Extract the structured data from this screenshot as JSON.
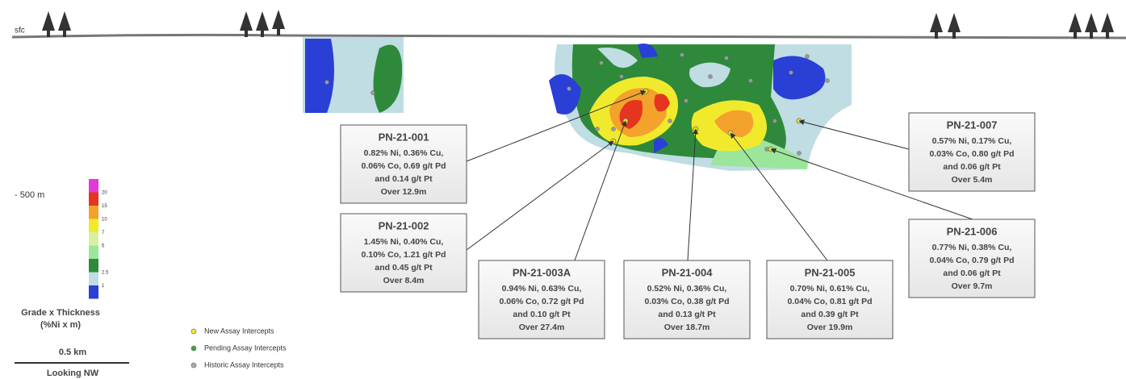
{
  "surface_label": "sfc",
  "depth_label": "- 500 m",
  "color_scale": {
    "labels": [
      "20",
      "15",
      "10",
      "7",
      "5",
      "2.5",
      "1"
    ],
    "title": "Grade x Thickness",
    "units": "(%Ni x m)"
  },
  "scale_bar": "0.5 km",
  "view": "Looking NW",
  "legend": [
    "New Assay Intercepts",
    "Pending Assay Intercepts",
    "Historic Assay Intercepts"
  ],
  "boxes": [
    {
      "title": "PN-21-001",
      "lines": [
        "0.82% Ni, 0.36% Cu,",
        "0.06% Co, 0.69 g/t Pd",
        "and 0.14 g/t Pt",
        "Over 12.9m"
      ]
    },
    {
      "title": "PN-21-002",
      "lines": [
        "1.45% Ni, 0.40% Cu,",
        "0.10% Co, 1.21 g/t Pd",
        "and 0.45 g/t Pt",
        "Over 8.4m"
      ]
    },
    {
      "title": "PN-21-003A",
      "lines": [
        "0.94% Ni, 0.63% Cu,",
        "0.06% Co, 0.72 g/t Pd",
        "and 0.10 g/t Pt",
        "Over 27.4m"
      ]
    },
    {
      "title": "PN-21-004",
      "lines": [
        "0.52% Ni, 0.36% Cu,",
        "0.03% Co, 0.38 g/t Pd",
        "and 0.13 g/t Pt",
        "Over 18.7m"
      ]
    },
    {
      "title": "PN-21-005",
      "lines": [
        "0.70% Ni, 0.61% Cu,",
        "0.04% Co, 0.81 g/t Pd",
        "and 0.39 g/t Pt",
        "Over 19.9m"
      ]
    },
    {
      "title": "PN-21-006",
      "lines": [
        "0.77% Ni, 0.38% Cu,",
        "0.04% Co, 0.79 g/t Pd",
        "and 0.06 g/t Pt",
        "Over 9.7m"
      ]
    },
    {
      "title": "PN-21-007",
      "lines": [
        "0.57% Ni, 0.17% Cu,",
        "0.03% Co, 0.80 g/t Pd",
        "and 0.06 g/t Pt",
        "Over 5.4m"
      ]
    }
  ]
}
